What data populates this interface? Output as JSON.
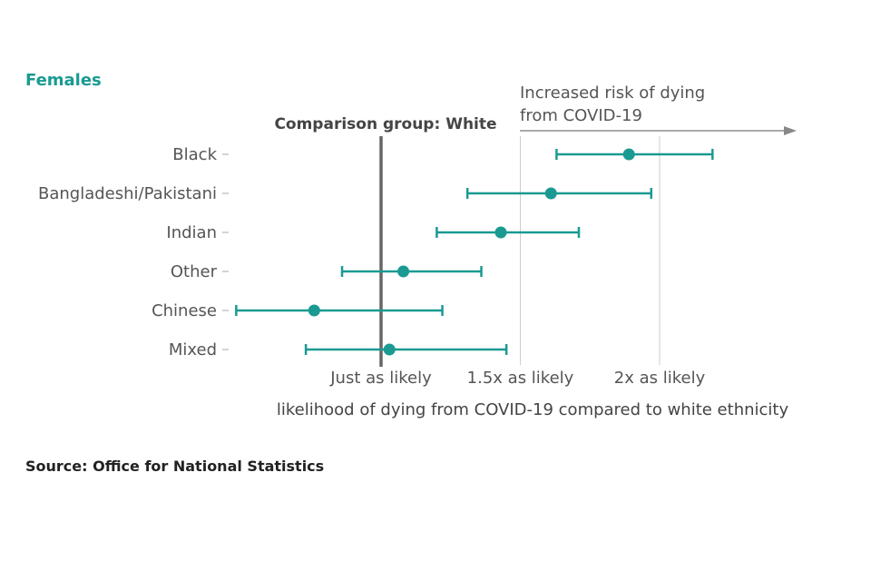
{
  "chart_data": {
    "type": "forest",
    "subtitle": "Females",
    "reference": {
      "label": "Comparison group: White",
      "value": 1.0
    },
    "annotation": {
      "lines": [
        "Increased risk of dying",
        "from COVID-19"
      ]
    },
    "xlabel": "likelihood of dying from COVID-19 compared to white ethnicity",
    "xticks": [
      {
        "value": 1.0,
        "label": "Just as likely"
      },
      {
        "value": 1.5,
        "label": "1.5x as likely"
      },
      {
        "value": 2.0,
        "label": "2x as likely"
      }
    ],
    "xlim": [
      0.44,
      2.5
    ],
    "categories": [
      "Black",
      "Bangladeshi/Pakistani",
      "Indian",
      "Other",
      "Chinese",
      "Mixed"
    ],
    "series": [
      {
        "name": "Females",
        "color": "#1a9a92",
        "estimates": [
          1.89,
          1.61,
          1.43,
          1.08,
          0.76,
          1.03
        ],
        "lower": [
          1.63,
          1.31,
          1.2,
          0.86,
          0.48,
          0.73
        ],
        "upper": [
          2.19,
          1.97,
          1.71,
          1.36,
          1.22,
          1.45
        ]
      }
    ],
    "source": "Source: Office for National Statistics"
  },
  "colors": {
    "accent": "#1a9a92",
    "reference_line": "#666666",
    "grid": "#cccccc"
  }
}
